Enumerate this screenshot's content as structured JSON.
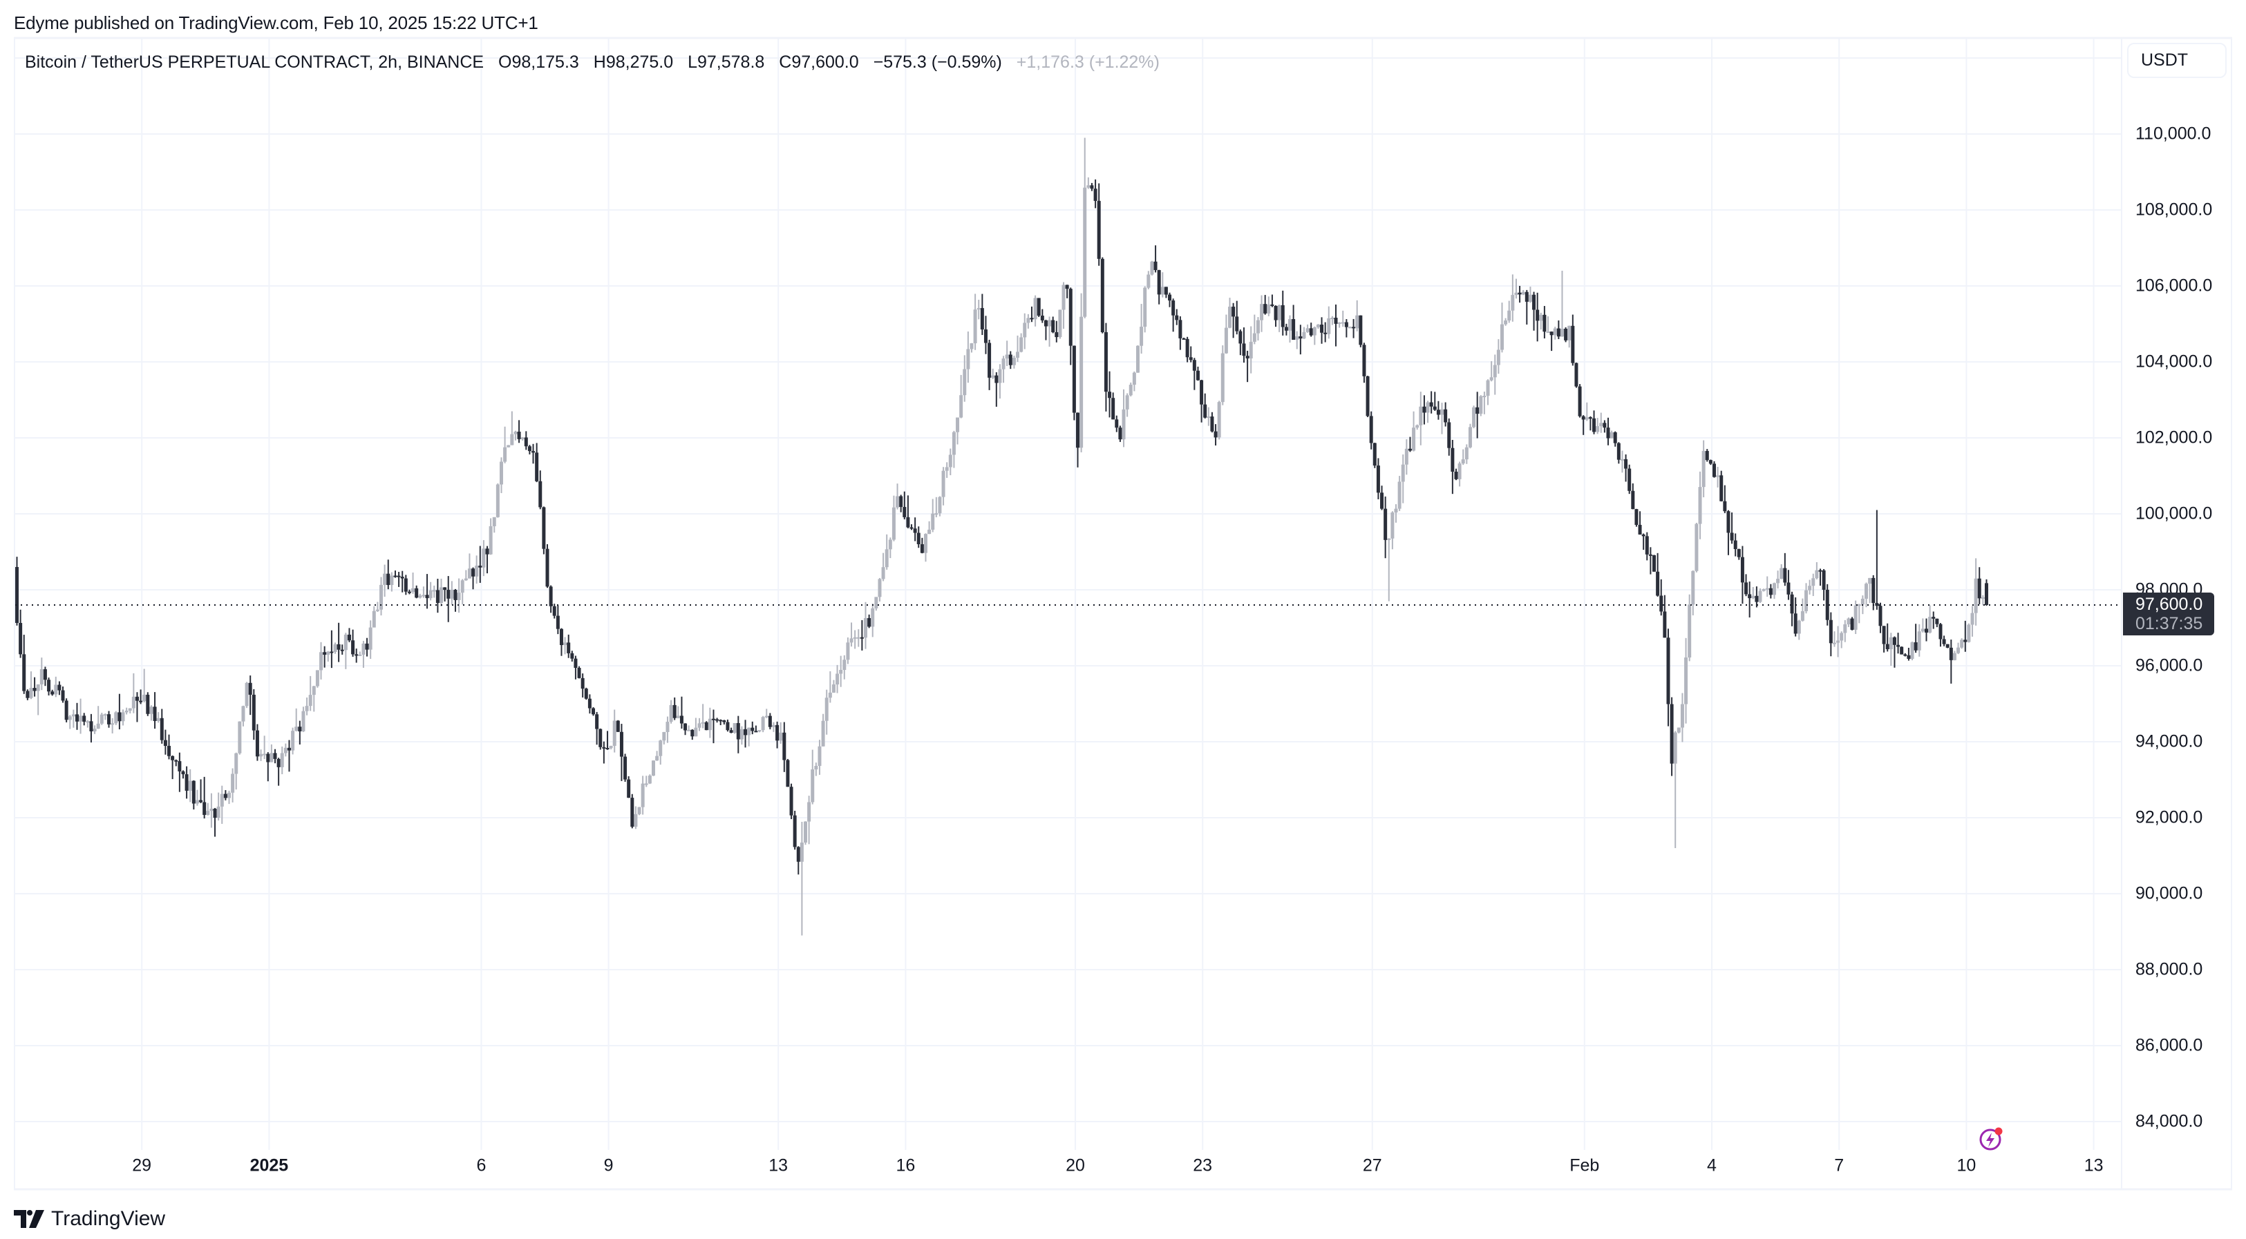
{
  "header": {
    "published": "Edyme published on TradingView.com, Feb 10, 2025 15:22 UTC+1"
  },
  "legend": {
    "symbol": "Bitcoin / TetherUS PERPETUAL CONTRACT, 2h, BINANCE",
    "open": "O98,175.3",
    "high": "H98,275.0",
    "low": "L97,578.8",
    "close": "C97,600.0",
    "change": "−575.3 (−0.59%)",
    "extra_change": "+1,176.3 (+1.22%)"
  },
  "price_axis": {
    "currency": "USDT",
    "ticks": [
      "110,000.0",
      "108,000.0",
      "106,000.0",
      "104,000.0",
      "102,000.0",
      "100,000.0",
      "98,000.0",
      "96,000.0",
      "94,000.0",
      "92,000.0",
      "90,000.0",
      "88,000.0",
      "86,000.0",
      "84,000.0"
    ],
    "last_price_label": "97,600.0",
    "countdown": "01:37:35"
  },
  "time_axis": {
    "ticks": [
      {
        "label": "29",
        "bold": false
      },
      {
        "label": "2025",
        "bold": true
      },
      {
        "label": "6",
        "bold": false
      },
      {
        "label": "9",
        "bold": false
      },
      {
        "label": "13",
        "bold": false
      },
      {
        "label": "16",
        "bold": false
      },
      {
        "label": "20",
        "bold": false
      },
      {
        "label": "23",
        "bold": false
      },
      {
        "label": "27",
        "bold": false
      },
      {
        "label": "Feb",
        "bold": false
      },
      {
        "label": "4",
        "bold": false
      },
      {
        "label": "7",
        "bold": false
      },
      {
        "label": "10",
        "bold": false
      },
      {
        "label": "13",
        "bold": false
      }
    ]
  },
  "footer": {
    "brand": "TradingView"
  },
  "colors": {
    "up_candle": "#b2b5be",
    "down_candle": "#2a2e39",
    "grid": "#f0f3fa",
    "last_price_bg": "#2a2e39",
    "bolt_icon": "#9c27b0",
    "notification_dot": "#f23645"
  },
  "chart_data": {
    "type": "candlestick",
    "title": "Bitcoin / TetherUS PERPETUAL CONTRACT, 2h, BINANCE",
    "xlabel": "",
    "ylabel": "USDT",
    "ylim": [
      82500,
      112500
    ],
    "grid": true,
    "interval": "2h",
    "time_origin": "2024-12-26 00:00",
    "last_candle": {
      "open": 98175.3,
      "high": 98275.0,
      "low": 97578.8,
      "close": 97600.0
    },
    "close_path": {
      "t_days": [
        0.0,
        0.28,
        0.69,
        1.37,
        1.71,
        2.38,
        3.06,
        3.91,
        4.6,
        5.09,
        5.5,
        5.77,
        6.28,
        6.79,
        7.3,
        7.8,
        8.31,
        8.75,
        9.5,
        10.35,
        10.85,
        11.19,
        11.6,
        11.87,
        12.28,
        12.55,
        12.89,
        13.22,
        13.56,
        13.9,
        14.24,
        14.58,
        14.92,
        15.43,
        15.93,
        16.61,
        17.29,
        17.8,
        18.14,
        18.48,
        18.71,
        19.15,
        19.66,
        20.17,
        20.51,
        20.85,
        21.36,
        21.86,
        22.2,
        22.71,
        23.05,
        23.56,
        24.06,
        24.57,
        24.81,
        25.08,
        25.25,
        25.49,
        25.76,
        26.03,
        26.43,
        26.77,
        27.28,
        27.79,
        28.3,
        28.64,
        28.98,
        29.49,
        29.82,
        30.33,
        31.01,
        31.69,
        32.03,
        32.37,
        32.7,
        33.21,
        33.72,
        33.96,
        34.4,
        34.91,
        35.24,
        35.75,
        36.26,
        36.67,
        36.94,
        37.45,
        37.78,
        38.29,
        38.63,
        38.91,
        39.08,
        39.31,
        39.58,
        39.82,
        40.16,
        40.5,
        40.83,
        41.17,
        41.68,
        42.02,
        42.53,
        42.87,
        43.38,
        43.71,
        44.05,
        44.56,
        45.24,
        45.75,
        46.09,
        46.25,
        46.45
      ],
      "close": [
        98300,
        95200,
        95800,
        94600,
        94500,
        94600,
        95200,
        93300,
        91900,
        92800,
        95700,
        93600,
        93500,
        94500,
        96500,
        96600,
        96300,
        98400,
        98000,
        97800,
        98500,
        99200,
        101800,
        102200,
        101600,
        98400,
        96700,
        95800,
        94900,
        93600,
        94500,
        92000,
        93000,
        94800,
        94300,
        94600,
        94100,
        94600,
        93900,
        90900,
        92300,
        94900,
        96500,
        97200,
        98800,
        100400,
        99000,
        100600,
        102300,
        105500,
        103500,
        104200,
        105500,
        104600,
        106200,
        101400,
        108800,
        108200,
        103200,
        101900,
        103700,
        106600,
        105300,
        103800,
        101900,
        105500,
        104000,
        105500,
        105300,
        104600,
        105000,
        105000,
        101700,
        99200,
        101000,
        102800,
        102500,
        100700,
        102600,
        103900,
        105600,
        105600,
        104600,
        104800,
        102400,
        102300,
        101900,
        99700,
        98500,
        96900,
        93500,
        94900,
        98500,
        101900,
        100800,
        99300,
        98100,
        97800,
        98400,
        97000,
        98700,
        96400,
        97200,
        98500,
        96800,
        96200,
        97200,
        96200,
        97000,
        98175,
        97600
      ]
    },
    "notable_wicks": [
      {
        "t_days": 25.2,
        "high": 109900
      },
      {
        "t_days": 25.5,
        "high": 108700
      },
      {
        "t_days": 18.5,
        "low": 88900
      },
      {
        "t_days": 39.05,
        "low": 91200
      },
      {
        "t_days": 43.8,
        "high": 100100
      },
      {
        "t_days": 11.7,
        "high": 102700
      },
      {
        "t_days": 4.7,
        "low": 91500
      },
      {
        "t_days": 32.3,
        "low": 97700
      },
      {
        "t_days": 36.4,
        "high": 106400
      }
    ]
  }
}
